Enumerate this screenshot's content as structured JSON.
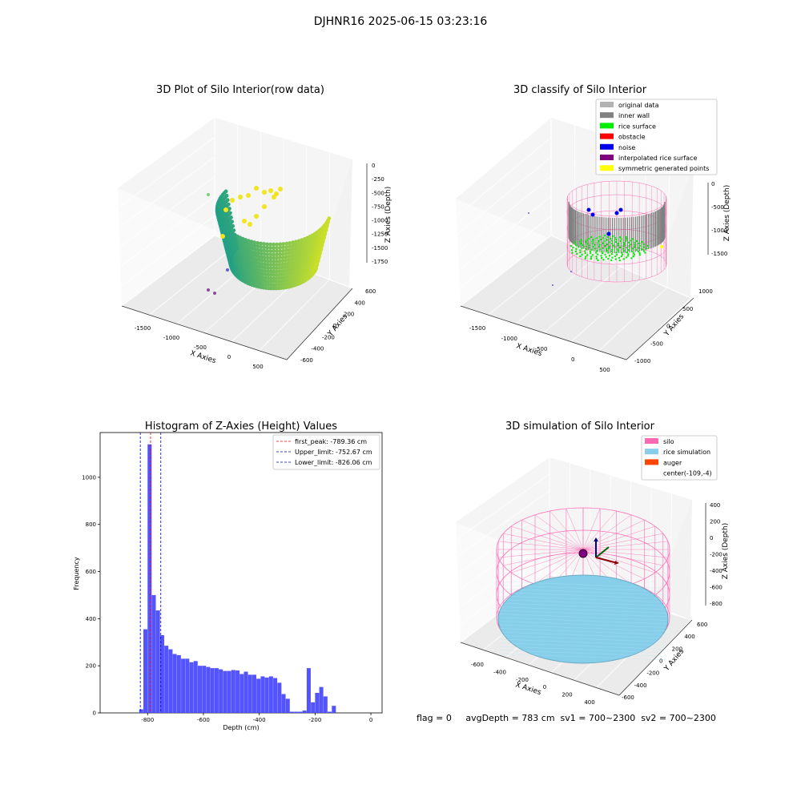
{
  "suptitle": "DJHNR16 2025-06-15 03:23:16",
  "status_line": "flag = 0     avgDepth = 783 cm  sv1 = 700~2300  sv2 = 700~2300",
  "colors": {
    "original": "#b3b3b3",
    "inner_wall": "#808080",
    "rice_surface": "#00ee00",
    "obstacle": "#ff0000",
    "noise": "#0000ee",
    "interpolated": "#800080",
    "symmetric": "#ffff00",
    "silo": "#ff69b4",
    "rice_sim": "#87ceeb",
    "auger": "#ff4500",
    "hist_bar": "#4b4bff",
    "peak_line": "#ff0000",
    "limit_line": "#0000cc"
  },
  "chart_data": [
    {
      "type": "scatter",
      "subtype": "3d",
      "title": "3D Plot of Silo Interior(row data)",
      "xlabel": "X Axies",
      "ylabel": "Y Axies",
      "zlabel": "Z Axies (Depth)",
      "x_ticks": [
        "-1500",
        "-1000",
        "-500",
        "0",
        "500"
      ],
      "y_ticks": [
        "-600",
        "-400",
        "-200",
        "0",
        "200",
        "400",
        "600"
      ],
      "z_ticks": [
        "0",
        "-250",
        "-500",
        "-750",
        "-1000",
        "-1250",
        "-1500",
        "-1750"
      ]
    },
    {
      "type": "scatter",
      "subtype": "3d",
      "title": "3D classify of Silo Interior",
      "xlabel": "X Axies",
      "ylabel": "Y Axies",
      "zlabel": "Z Axies (Depth)",
      "x_ticks": [
        "-1500",
        "-1000",
        "-500",
        "0",
        "500"
      ],
      "y_ticks": [
        "-1000",
        "-500",
        "0",
        "500",
        "1000"
      ],
      "z_ticks": [
        "0",
        "-500",
        "-1000",
        "-1500"
      ],
      "legend_position": "top-right",
      "legend": [
        {
          "label": "original data",
          "color_key": "original"
        },
        {
          "label": "inner wall",
          "color_key": "inner_wall"
        },
        {
          "label": "rice surface",
          "color_key": "rice_surface"
        },
        {
          "label": "obstacle",
          "color_key": "obstacle"
        },
        {
          "label": "noise",
          "color_key": "noise"
        },
        {
          "label": "interpolated rice surface",
          "color_key": "interpolated"
        },
        {
          "label": "symmetric generated points",
          "color_key": "symmetric"
        }
      ]
    },
    {
      "type": "bar",
      "subtype": "histogram",
      "title": "Histogram of Z-Axies (Height) Values",
      "xlabel": "Depth (cm)",
      "ylabel": "Frequency",
      "xlim": [
        -970,
        40
      ],
      "ylim": [
        0,
        1190
      ],
      "x_ticks": [
        -800,
        -600,
        -400,
        -200,
        0
      ],
      "y_ticks": [
        0,
        200,
        400,
        600,
        800,
        1000
      ],
      "bin_width": 15,
      "bins": [
        [
          -830,
          15
        ],
        [
          -815,
          355
        ],
        [
          -800,
          1140
        ],
        [
          -785,
          500
        ],
        [
          -770,
          435
        ],
        [
          -755,
          330
        ],
        [
          -740,
          285
        ],
        [
          -725,
          270
        ],
        [
          -710,
          250
        ],
        [
          -695,
          245
        ],
        [
          -680,
          230
        ],
        [
          -665,
          230
        ],
        [
          -650,
          215
        ],
        [
          -635,
          220
        ],
        [
          -620,
          200
        ],
        [
          -605,
          200
        ],
        [
          -590,
          195
        ],
        [
          -575,
          190
        ],
        [
          -560,
          190
        ],
        [
          -545,
          185
        ],
        [
          -530,
          178
        ],
        [
          -515,
          178
        ],
        [
          -500,
          182
        ],
        [
          -485,
          180
        ],
        [
          -470,
          165
        ],
        [
          -455,
          175
        ],
        [
          -440,
          162
        ],
        [
          -425,
          162
        ],
        [
          -410,
          145
        ],
        [
          -395,
          155
        ],
        [
          -380,
          150
        ],
        [
          -365,
          155
        ],
        [
          -350,
          148
        ],
        [
          -335,
          128
        ],
        [
          -320,
          80
        ],
        [
          -305,
          60
        ],
        [
          -290,
          5
        ],
        [
          -275,
          5
        ],
        [
          -260,
          5
        ],
        [
          -245,
          10
        ],
        [
          -230,
          190
        ],
        [
          -215,
          45
        ],
        [
          -200,
          85
        ],
        [
          -185,
          110
        ],
        [
          -170,
          70
        ],
        [
          -155,
          5
        ],
        [
          -140,
          30
        ]
      ],
      "vlines": [
        {
          "x": -789.36,
          "label": "first_peak: -789.36 cm",
          "color_key": "peak_line"
        },
        {
          "x": -752.67,
          "label": "Upper_limit: -752.67 cm",
          "color_key": "limit_line"
        },
        {
          "x": -826.06,
          "label": "Lower_limit: -826.06 cm",
          "color_key": "limit_line"
        }
      ],
      "legend_position": "top-right"
    },
    {
      "type": "scatter",
      "subtype": "3d",
      "title": "3D simulation of Silo Interior",
      "xlabel": "X Axies",
      "ylabel": "Y Axies",
      "zlabel": "Z Axies (Depth)",
      "x_ticks": [
        "-600",
        "-400",
        "-200",
        "0",
        "200",
        "400"
      ],
      "y_ticks": [
        "-600",
        "-400",
        "-200",
        "0",
        "200",
        "400",
        "600"
      ],
      "z_ticks": [
        "400",
        "200",
        "0",
        "-200",
        "-400",
        "-600",
        "-800"
      ],
      "legend_position": "top-right",
      "legend": [
        {
          "label": "silo",
          "color_key": "silo"
        },
        {
          "label": "rice simulation",
          "color_key": "rice_sim"
        },
        {
          "label": "auger",
          "color_key": "auger"
        },
        {
          "label": "center(-109,-4)",
          "color_key": ""
        }
      ]
    }
  ]
}
